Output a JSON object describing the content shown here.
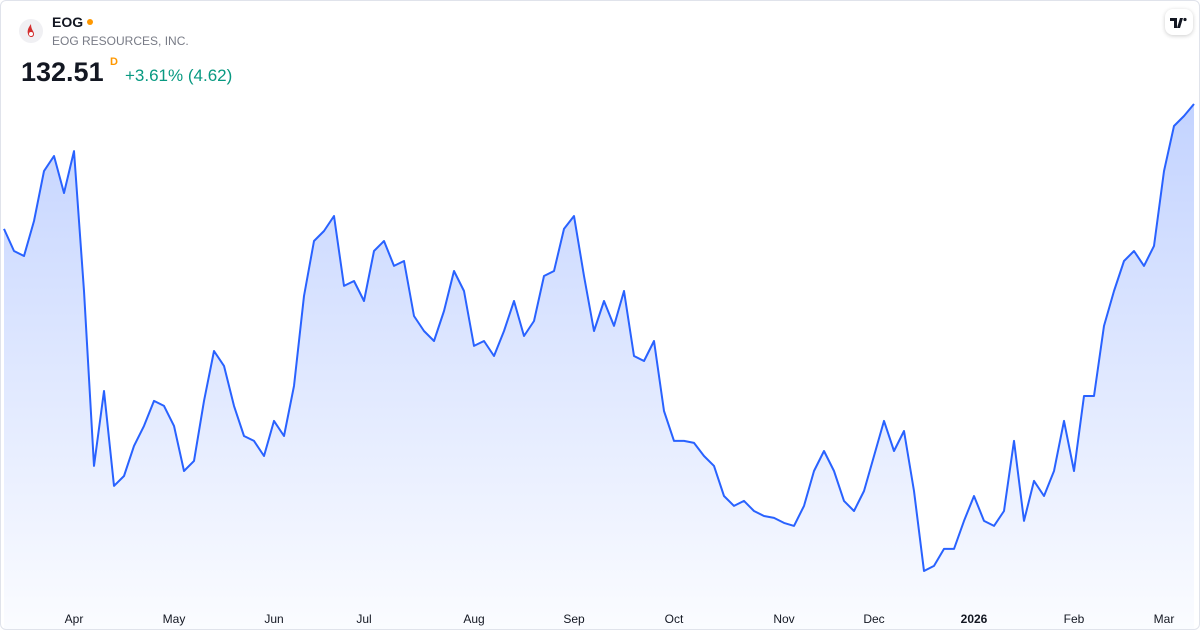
{
  "header": {
    "symbol": "EOG",
    "company": "EOG RESOURCES, INC.",
    "price": "132.51",
    "price_flag": "D",
    "change": "+3.61% (4.62)"
  },
  "chart_data": {
    "type": "area",
    "series": [
      {
        "name": "EOG",
        "color": "#2962ff",
        "values": [
          124.2,
          122.73,
          122.4,
          124.73,
          128.05,
          129.05,
          126.59,
          129.38,
          120.07,
          108.44,
          113.42,
          107.11,
          107.77,
          109.77,
          111.1,
          112.76,
          112.43,
          111.1,
          108.1,
          108.77,
          112.76,
          116.08,
          115.09,
          112.43,
          110.43,
          110.1,
          109.1,
          111.43,
          110.43,
          113.76,
          119.74,
          123.4,
          124.06,
          125.06,
          120.41,
          120.74,
          119.41,
          122.73,
          123.4,
          121.74,
          122.07,
          118.41,
          117.41,
          116.75,
          118.74,
          121.4,
          120.07,
          116.42,
          116.75,
          115.75,
          117.41,
          119.41,
          117.08,
          118.08,
          121.07,
          121.4,
          124.2,
          125.06,
          121.07,
          117.41,
          119.41,
          117.75,
          120.07,
          115.75,
          115.42,
          116.75,
          112.09,
          110.1,
          110.1,
          109.97,
          109.1,
          108.44,
          106.44,
          105.78,
          106.11,
          105.44,
          105.11,
          104.98,
          104.65,
          104.45,
          105.78,
          108.1,
          109.43,
          108.1,
          106.11,
          105.44,
          106.77,
          109.1,
          111.43,
          109.43,
          110.76,
          106.77,
          101.45,
          101.79,
          102.92,
          102.92,
          104.78,
          106.44,
          104.78,
          104.45,
          105.44,
          110.1,
          104.78,
          107.44,
          106.44,
          108.1,
          111.43,
          108.1,
          113.09,
          113.09,
          117.75,
          120.07,
          122.07,
          122.73,
          121.74,
          123.07,
          128.05,
          131.05,
          131.71,
          132.51
        ]
      }
    ],
    "xlim": [
      0,
      119
    ],
    "xticks": [
      {
        "value": 7,
        "label": "Apr"
      },
      {
        "value": 17,
        "label": "May"
      },
      {
        "value": 27,
        "label": "Jun"
      },
      {
        "value": 36,
        "label": "Jul"
      },
      {
        "value": 47,
        "label": "Aug"
      },
      {
        "value": 57,
        "label": "Sep"
      },
      {
        "value": 67,
        "label": "Oct"
      },
      {
        "value": 78,
        "label": "Nov"
      },
      {
        "value": 87,
        "label": "Dec"
      },
      {
        "value": 97,
        "label": "2026"
      },
      {
        "value": 107,
        "label": "Feb"
      },
      {
        "value": 116,
        "label": "Mar"
      }
    ]
  }
}
